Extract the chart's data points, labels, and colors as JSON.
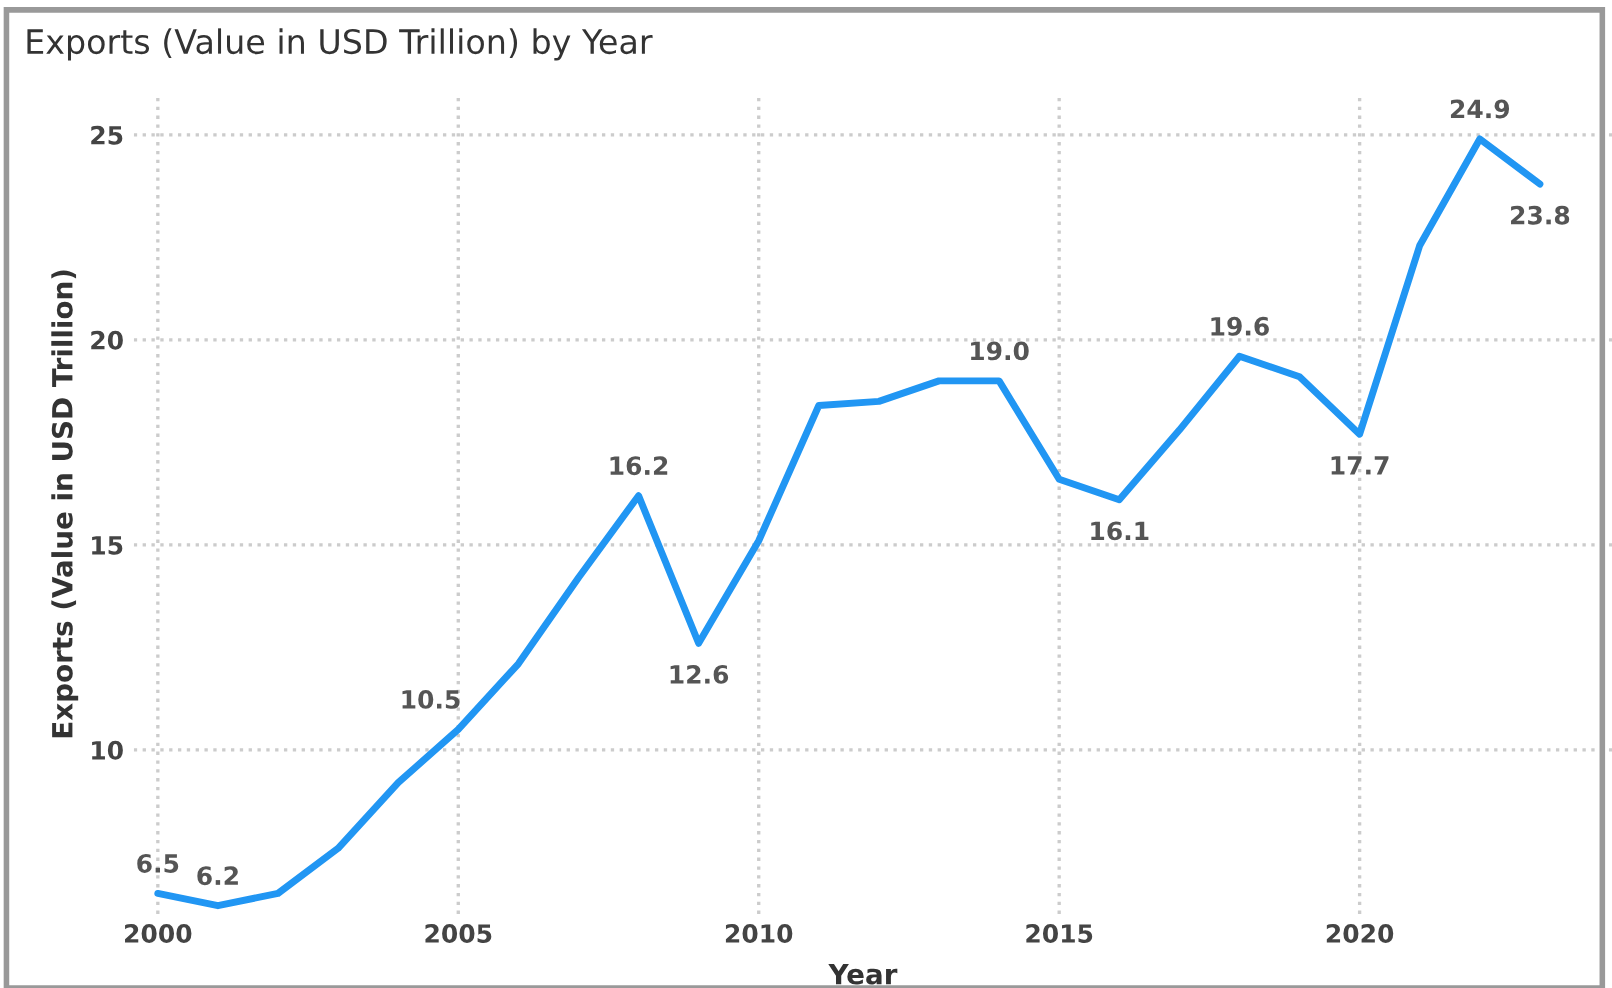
{
  "chart_data": {
    "type": "line",
    "title": "Exports (Value in USD Trillion) by Year",
    "xlabel": "Year",
    "ylabel": "Exports (Value in USD Trillion)",
    "x": [
      2000,
      2001,
      2002,
      2003,
      2004,
      2005,
      2006,
      2007,
      2008,
      2009,
      2010,
      2011,
      2012,
      2013,
      2014,
      2015,
      2016,
      2017,
      2018,
      2019,
      2020,
      2021,
      2022,
      2023
    ],
    "series": [
      {
        "color": "#2196f3",
        "values": [
          6.5,
          6.2,
          6.5,
          7.6,
          9.2,
          10.5,
          12.1,
          14.2,
          16.2,
          12.6,
          15.1,
          18.4,
          18.5,
          19.0,
          19.0,
          16.6,
          16.1,
          17.8,
          19.6,
          19.1,
          17.7,
          22.3,
          24.9,
          23.8
        ],
        "value_labels": [
          "6.5",
          "6.2",
          null,
          null,
          null,
          "10.5",
          null,
          null,
          "16.2",
          "12.6",
          null,
          null,
          null,
          null,
          "19.0",
          null,
          "16.1",
          null,
          "19.6",
          null,
          "17.7",
          null,
          "24.9",
          "23.8"
        ]
      }
    ],
    "xlim": [
      1999.6,
      2024.2
    ],
    "ylim": [
      6,
      26
    ],
    "xticks": [
      2000,
      2005,
      2010,
      2015,
      2020
    ],
    "yticks": [
      10,
      15,
      20,
      25
    ],
    "grid": true,
    "marker": "none",
    "legend": false
  }
}
